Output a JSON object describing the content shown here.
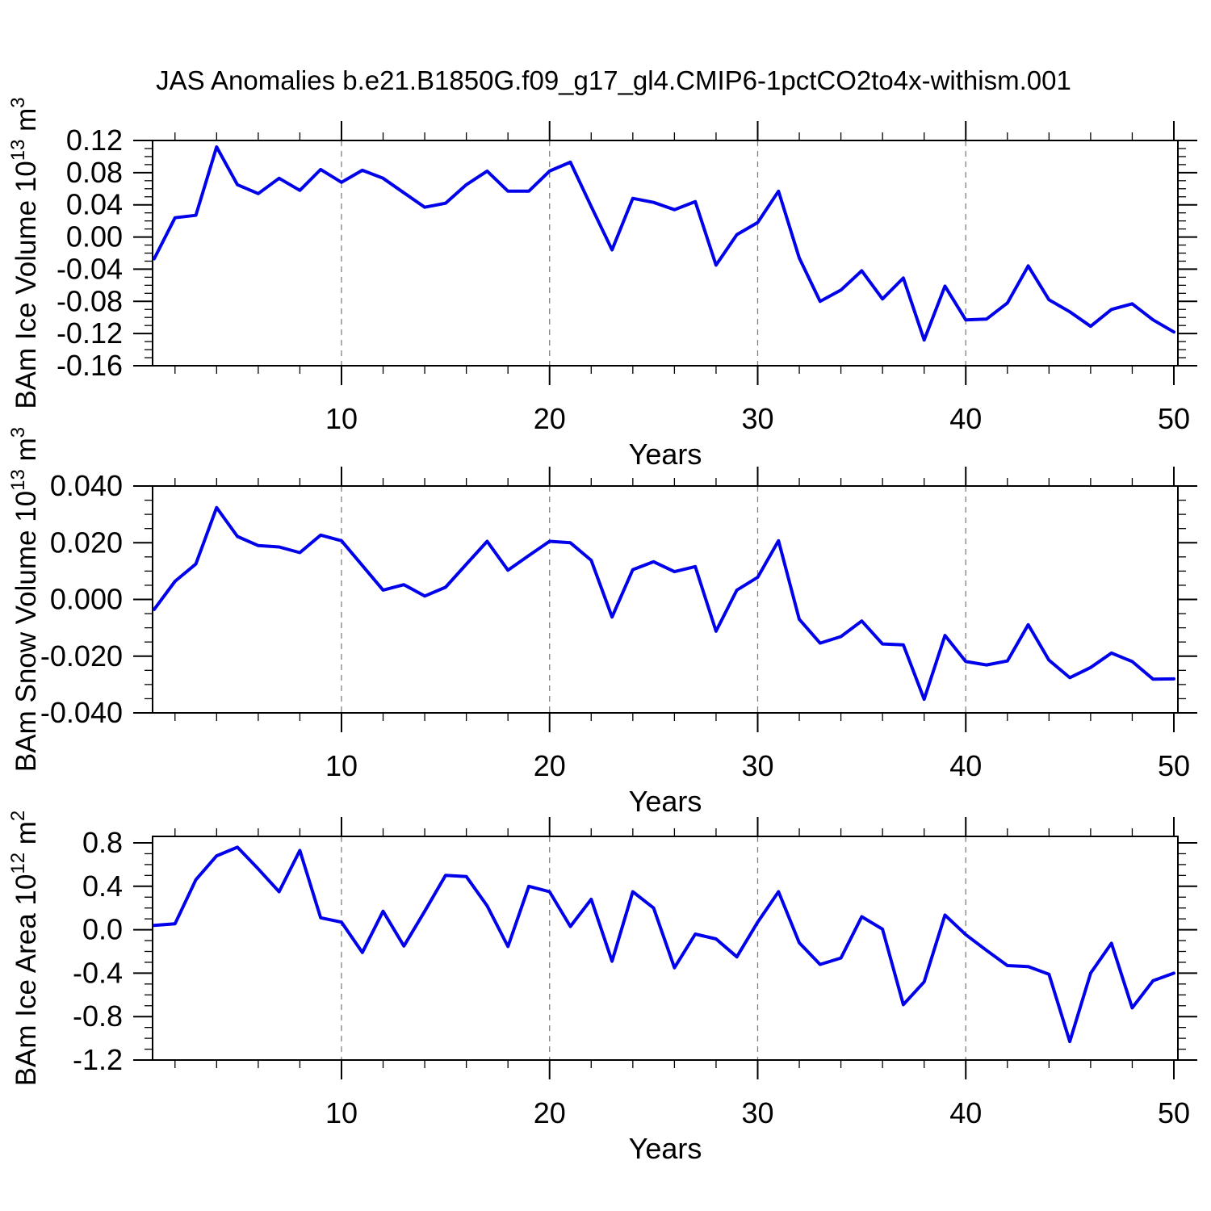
{
  "title": "JAS Anomalies b.e21.B1850G.f09_g17_gl4.CMIP6-1pctCO2to4x-withism.001",
  "xlabel": "Years",
  "line_color": "#0000eb",
  "grid_color": "#808080",
  "axis_color": "#000000",
  "xticks": {
    "major": [
      10,
      20,
      30,
      40,
      50
    ],
    "labels": [
      "10",
      "20",
      "30",
      "40",
      "50"
    ],
    "minor_step": 2,
    "grid": [
      10,
      20,
      30,
      40
    ]
  },
  "years": [
    1,
    2,
    3,
    4,
    5,
    6,
    7,
    8,
    9,
    10,
    11,
    12,
    13,
    14,
    15,
    16,
    17,
    18,
    19,
    20,
    21,
    22,
    23,
    24,
    25,
    26,
    27,
    28,
    29,
    30,
    31,
    32,
    33,
    34,
    35,
    36,
    37,
    38,
    39,
    40,
    41,
    42,
    43,
    44,
    45,
    46,
    47,
    48,
    49,
    50
  ],
  "chart_data": [
    {
      "type": "line",
      "name": "ice-volume",
      "ylabel": "BAm Ice Volume 10^13 m^3",
      "ylabel_parts": [
        {
          "t": "BAm Ice Volume 10"
        },
        {
          "t": "13",
          "sup": true
        },
        {
          "t": " m"
        },
        {
          "t": "3",
          "sup": true
        }
      ],
      "xlabel": "Years",
      "ylim": [
        -0.16,
        0.12
      ],
      "ytick_step": 0.04,
      "yminor_step": 0.01,
      "ytick_labels": [
        "0.12",
        "0.08",
        "0.04",
        "0.00",
        "-0.04",
        "-0.08",
        "-0.12",
        "-0.16"
      ],
      "grid": true,
      "values": [
        -0.027,
        0.024,
        0.027,
        0.112,
        0.065,
        0.054,
        0.073,
        0.058,
        0.084,
        0.068,
        0.083,
        0.073,
        0.055,
        0.037,
        0.042,
        0.065,
        0.082,
        0.057,
        0.057,
        0.082,
        0.093,
        0.038,
        -0.016,
        0.048,
        0.043,
        0.034,
        0.044,
        -0.035,
        0.003,
        0.018,
        0.057,
        -0.026,
        -0.08,
        -0.066,
        -0.042,
        -0.077,
        -0.051,
        -0.128,
        -0.061,
        -0.103,
        -0.102,
        -0.082,
        -0.036,
        -0.078,
        -0.093,
        -0.111,
        -0.09,
        -0.083,
        -0.103,
        -0.118
      ]
    },
    {
      "type": "line",
      "name": "snow-volume",
      "ylabel": "BAm Snow Volume 10^13 m^3",
      "ylabel_parts": [
        {
          "t": "BAm Snow Volume 10"
        },
        {
          "t": "13",
          "sup": true
        },
        {
          "t": " m"
        },
        {
          "t": "3",
          "sup": true
        }
      ],
      "xlabel": "Years",
      "ylim": [
        -0.04,
        0.04
      ],
      "ytick_step": 0.02,
      "yminor_step": 0.005,
      "ytick_labels": [
        "0.040",
        "0.020",
        "0.000",
        "-0.020",
        "-0.040"
      ],
      "grid": true,
      "values": [
        -0.0035,
        0.0064,
        0.0125,
        0.0324,
        0.0222,
        0.019,
        0.0185,
        0.0165,
        0.0227,
        0.0207,
        0.012,
        0.0033,
        0.0052,
        0.0012,
        0.0043,
        0.0124,
        0.0205,
        0.0103,
        0.0155,
        0.0205,
        0.02,
        0.0138,
        -0.0062,
        0.0105,
        0.0133,
        0.0098,
        0.0116,
        -0.0112,
        0.0033,
        0.0078,
        0.0207,
        -0.007,
        -0.0154,
        -0.0131,
        -0.0076,
        -0.0157,
        -0.016,
        -0.0352,
        -0.0127,
        -0.0219,
        -0.0231,
        -0.0217,
        -0.0089,
        -0.0214,
        -0.0276,
        -0.024,
        -0.0189,
        -0.0219,
        -0.0281,
        -0.028
      ]
    },
    {
      "type": "line",
      "name": "ice-area",
      "ylabel": "BAm Ice Area 10^12 m^2",
      "ylabel_parts": [
        {
          "t": "BAm Ice Area 10"
        },
        {
          "t": "12",
          "sup": true
        },
        {
          "t": " m"
        },
        {
          "t": "2",
          "sup": true
        }
      ],
      "xlabel": "Years",
      "ylim": [
        -1.2,
        0.8
      ],
      "ytick_step": 0.4,
      "yminor_step": 0.1,
      "ytick_labels": [
        "0.8",
        "0.4",
        "0.0",
        "-0.4",
        "-0.8",
        "-1.2"
      ],
      "grid": true,
      "values": [
        0.04,
        0.055,
        0.46,
        0.68,
        0.76,
        0.56,
        0.35,
        0.73,
        0.11,
        0.07,
        -0.21,
        0.17,
        -0.15,
        0.17,
        0.5,
        0.49,
        0.22,
        -0.155,
        0.4,
        0.35,
        0.03,
        0.28,
        -0.29,
        0.35,
        0.2,
        -0.35,
        -0.04,
        -0.085,
        -0.25,
        0.07,
        0.35,
        -0.12,
        -0.32,
        -0.26,
        0.12,
        0.005,
        -0.69,
        -0.48,
        0.135,
        -0.045,
        -0.19,
        -0.33,
        -0.34,
        -0.41,
        -1.03,
        -0.4,
        -0.125,
        -0.72,
        -0.47,
        -0.4
      ]
    }
  ]
}
